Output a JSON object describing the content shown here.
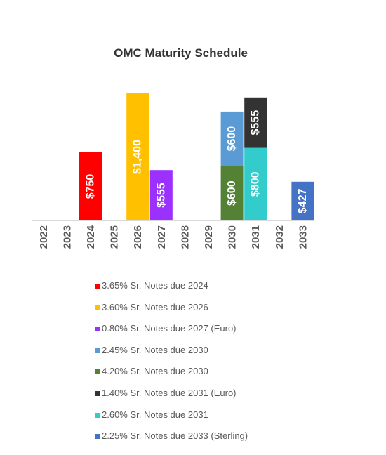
{
  "chart_data": {
    "type": "bar",
    "stacked": true,
    "title": "OMC Maturity Schedule",
    "xlabel": "",
    "ylabel": "",
    "ylim": [
      0,
      1400
    ],
    "grid": false,
    "legend_position": "bottom",
    "categories": [
      "2022",
      "2023",
      "2024",
      "2025",
      "2026",
      "2027",
      "2028",
      "2029",
      "2030",
      "2031",
      "2032",
      "2033"
    ],
    "series": [
      {
        "name": "3.65% Sr. Notes due 2024",
        "color": "#ff0000",
        "values": [
          0,
          0,
          750,
          0,
          0,
          0,
          0,
          0,
          0,
          0,
          0,
          0
        ],
        "labels": [
          "",
          "",
          "$750",
          "",
          "",
          "",
          "",
          "",
          "",
          "",
          "",
          ""
        ]
      },
      {
        "name": "3.60% Sr. Notes due 2026",
        "color": "#ffc000",
        "values": [
          0,
          0,
          0,
          0,
          1400,
          0,
          0,
          0,
          0,
          0,
          0,
          0
        ],
        "labels": [
          "",
          "",
          "",
          "",
          "$1,400",
          "",
          "",
          "",
          "",
          "",
          "",
          ""
        ]
      },
      {
        "name": "0.80% Sr. Notes due 2027 (Euro)",
        "color": "#9b30ff",
        "values": [
          0,
          0,
          0,
          0,
          0,
          555,
          0,
          0,
          0,
          0,
          0,
          0
        ],
        "labels": [
          "",
          "",
          "",
          "",
          "",
          "$555",
          "",
          "",
          "",
          "",
          "",
          ""
        ]
      },
      {
        "name": "4.20% Sr. Notes due 2030",
        "color": "#548235",
        "values": [
          0,
          0,
          0,
          0,
          0,
          0,
          0,
          0,
          600,
          0,
          0,
          0
        ],
        "labels": [
          "",
          "",
          "",
          "",
          "",
          "",
          "",
          "",
          "$600",
          "",
          "",
          ""
        ]
      },
      {
        "name": "2.45% Sr. Notes due 2030",
        "color": "#5b9bd5",
        "values": [
          0,
          0,
          0,
          0,
          0,
          0,
          0,
          0,
          600,
          0,
          0,
          0
        ],
        "labels": [
          "",
          "",
          "",
          "",
          "",
          "",
          "",
          "",
          "$600",
          "",
          "",
          ""
        ]
      },
      {
        "name": "2.60% Sr. Notes due 2031",
        "color": "#33cccc",
        "values": [
          0,
          0,
          0,
          0,
          0,
          0,
          0,
          0,
          0,
          800,
          0,
          0
        ],
        "labels": [
          "",
          "",
          "",
          "",
          "",
          "",
          "",
          "",
          "",
          "$800",
          "",
          ""
        ]
      },
      {
        "name": "1.40% Sr. Notes due 2031 (Euro)",
        "color": "#333333",
        "values": [
          0,
          0,
          0,
          0,
          0,
          0,
          0,
          0,
          0,
          555,
          0,
          0
        ],
        "labels": [
          "",
          "",
          "",
          "",
          "",
          "",
          "",
          "",
          "",
          "$555",
          "",
          ""
        ]
      },
      {
        "name": "2.25% Sr. Notes due 2033 (Sterling)",
        "color": "#4472c4",
        "values": [
          0,
          0,
          0,
          0,
          0,
          0,
          0,
          0,
          0,
          0,
          0,
          427
        ],
        "labels": [
          "",
          "",
          "",
          "",
          "",
          "",
          "",
          "",
          "",
          "",
          "",
          "$427"
        ]
      }
    ],
    "legend": [
      {
        "label": "3.65% Sr. Notes due 2024",
        "color": "#ff0000"
      },
      {
        "label": "3.60% Sr. Notes due 2026",
        "color": "#ffc000"
      },
      {
        "label": "0.80% Sr. Notes due 2027 (Euro)",
        "color": "#9b30ff"
      },
      {
        "label": "2.45% Sr. Notes due 2030",
        "color": "#5b9bd5"
      },
      {
        "label": "4.20% Sr. Notes due 2030",
        "color": "#548235"
      },
      {
        "label": "1.40% Sr. Notes due 2031 (Euro)",
        "color": "#333333"
      },
      {
        "label": "2.60% Sr. Notes due 2031",
        "color": "#33cccc"
      },
      {
        "label": "2.25% Sr. Notes due 2033 (Sterling)",
        "color": "#4472c4"
      }
    ]
  }
}
